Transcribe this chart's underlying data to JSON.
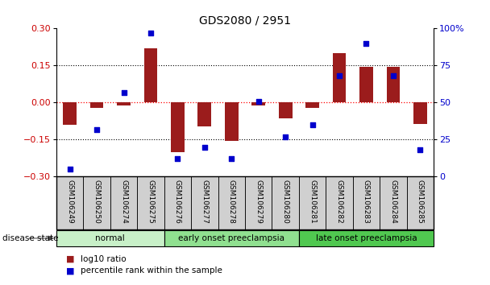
{
  "title": "GDS2080 / 2951",
  "samples": [
    "GSM106249",
    "GSM106250",
    "GSM106274",
    "GSM106275",
    "GSM106276",
    "GSM106277",
    "GSM106278",
    "GSM106279",
    "GSM106280",
    "GSM106281",
    "GSM106282",
    "GSM106283",
    "GSM106284",
    "GSM106285"
  ],
  "log10_ratio": [
    -0.09,
    -0.02,
    -0.01,
    0.22,
    -0.2,
    -0.095,
    -0.155,
    -0.01,
    -0.065,
    -0.02,
    0.2,
    0.145,
    0.145,
    -0.085
  ],
  "percentile_rank": [
    5,
    32,
    57,
    97,
    12,
    20,
    12,
    51,
    27,
    35,
    68,
    90,
    68,
    18
  ],
  "groups": [
    {
      "label": "normal",
      "start": 0,
      "end": 4,
      "color": "#c8f0c8"
    },
    {
      "label": "early onset preeclampsia",
      "start": 4,
      "end": 9,
      "color": "#90e090"
    },
    {
      "label": "late onset preeclampsia",
      "start": 9,
      "end": 14,
      "color": "#50c850"
    }
  ],
  "bar_color": "#9b1c1c",
  "dot_color": "#0000cc",
  "left_ylim": [
    -0.3,
    0.3
  ],
  "right_ylim": [
    0,
    100
  ],
  "left_yticks": [
    -0.3,
    -0.15,
    0,
    0.15,
    0.3
  ],
  "right_yticks": [
    0,
    25,
    50,
    75,
    100
  ],
  "right_yticklabels": [
    "0",
    "25",
    "50",
    "75",
    "100%"
  ],
  "hline_value": 0.0,
  "dotted_lines": [
    -0.15,
    0.15
  ],
  "legend_bar_label": "log10 ratio",
  "legend_dot_label": "percentile rank within the sample",
  "disease_state_label": "disease state",
  "background_color": "#ffffff",
  "tick_label_color_left": "#cc0000",
  "tick_label_color_right": "#0000cc",
  "cell_facecolor": "#d0d0d0",
  "bar_width": 0.5
}
